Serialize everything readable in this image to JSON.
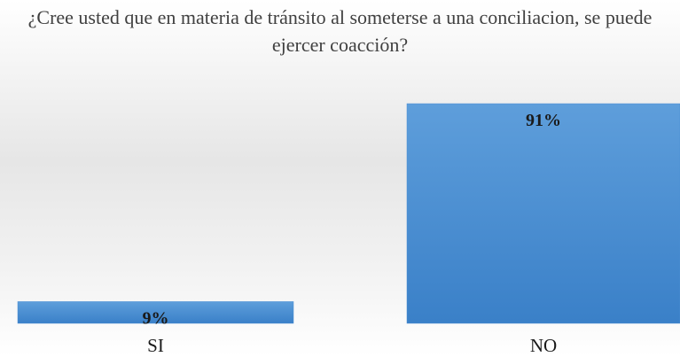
{
  "chart_data": {
    "type": "bar",
    "title": "¿Cree usted que en materia de tránsito al someterse a una conciliacion, se puede ejercer coacción?",
    "categories": [
      "SI",
      "NO"
    ],
    "values": [
      9,
      91
    ],
    "value_labels": [
      "9%",
      "91%"
    ],
    "color": "#4a8ed3"
  }
}
